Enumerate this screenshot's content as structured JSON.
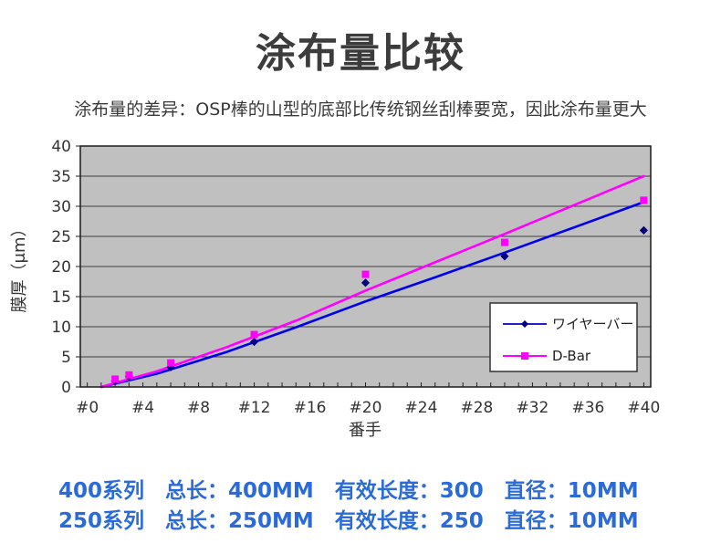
{
  "title": "涂布量比较",
  "subtitle": "涂布量的差异：OSP棒的山型的底部比传统钢丝刮棒要宽，因此涂布量更大",
  "chart_data": {
    "type": "scatter",
    "title": "",
    "xlabel": "番手",
    "ylabel": "膜厚（μm）",
    "xlim": [
      -0.5,
      40.5
    ],
    "ylim": [
      0,
      40
    ],
    "y_ticks": [
      0,
      5,
      10,
      15,
      20,
      25,
      30,
      35,
      40
    ],
    "x_tick_labels": [
      "#0",
      "#4",
      "#8",
      "#12",
      "#16",
      "#20",
      "#24",
      "#28",
      "#32",
      "#36",
      "#40"
    ],
    "x_tick_values": [
      0,
      4,
      8,
      12,
      16,
      20,
      24,
      28,
      32,
      36,
      40
    ],
    "x_minor_tick_step": 1,
    "grid": true,
    "plot_bg": "#c0c0c0",
    "grid_color": "#404040",
    "border_color": "#1a1a1a",
    "legend_position": "inside-right",
    "series": [
      {
        "name": "ワイヤーバー",
        "marker": "diamond",
        "marker_color": "#000080",
        "line_color": "#0000ee",
        "points": {
          "x": [
            2,
            3,
            6,
            12,
            20,
            30,
            40
          ],
          "y": [
            1.0,
            1.7,
            3.3,
            7.5,
            17.3,
            21.7,
            26.0
          ]
        },
        "trend": {
          "x": [
            1,
            5,
            10,
            15,
            20,
            25,
            30,
            35,
            40
          ],
          "y": [
            0,
            2.2,
            5.8,
            9.9,
            14.2,
            18.2,
            22.3,
            26.5,
            30.7
          ]
        }
      },
      {
        "name": "D-Bar",
        "marker": "square",
        "marker_color": "#ff00ff",
        "line_color": "#ff00ff",
        "points": {
          "x": [
            2,
            3,
            6,
            12,
            20,
            30,
            40
          ],
          "y": [
            1.3,
            2.0,
            4.0,
            8.7,
            18.7,
            24.0,
            31.0
          ]
        },
        "trend": {
          "x": [
            1,
            5,
            10,
            15,
            20,
            25,
            30,
            35,
            40
          ],
          "y": [
            0,
            2.6,
            6.6,
            11.0,
            16.0,
            20.7,
            25.4,
            30.2,
            35.0
          ]
        }
      }
    ]
  },
  "footer": {
    "color": "#2b6bd9",
    "lines": [
      "400系列　总长：400MM　有效长度：300　直径：10MM",
      "250系列　总长：250MM　有效长度：250　直径：10MM"
    ]
  }
}
